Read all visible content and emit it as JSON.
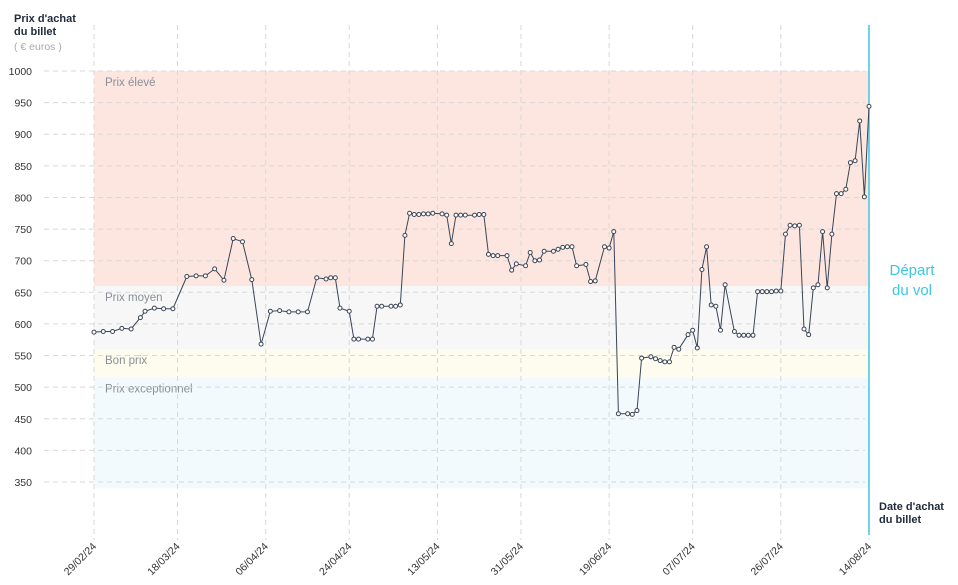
{
  "chart_data": {
    "type": "line",
    "y_label_lines": [
      "Prix d'achat",
      "du billet"
    ],
    "y_unit": "( € euros )",
    "x_label_lines": [
      "Date d'achat",
      "du billet"
    ],
    "annotation_lines": [
      "Départ",
      "du vol"
    ],
    "ylim": [
      300,
      1000
    ],
    "yticks": [
      350,
      400,
      450,
      500,
      550,
      600,
      650,
      700,
      750,
      800,
      850,
      900,
      950,
      1000
    ],
    "xlim": [
      "29/02/24",
      "14/08/24"
    ],
    "xticks": [
      "29/02/24",
      "18/03/24",
      "06/04/24",
      "24/04/24",
      "13/05/24",
      "31/05/24",
      "19/06/24",
      "07/07/24",
      "26/07/24",
      "14/08/24"
    ],
    "grid": true,
    "departure": "14/08/24",
    "zones": [
      {
        "name": "Prix élevé",
        "min": 660,
        "max": 1000,
        "color": "#fde6df"
      },
      {
        "name": "Prix moyen",
        "min": 560,
        "max": 660,
        "color": "#f7f7f8"
      },
      {
        "name": "Bon prix",
        "min": 515,
        "max": 560,
        "color": "#fdfcee"
      },
      {
        "name": "Prix exceptionnel",
        "min": 340,
        "max": 515,
        "color": "#f3fafd"
      }
    ],
    "x": [
      "29/02/24",
      "02/03/24",
      "04/03/24",
      "06/03/24",
      "08/03/24",
      "10/03/24",
      "11/03/24",
      "13/03/24",
      "15/03/24",
      "17/03/24",
      "20/03/24",
      "22/03/24",
      "24/03/24",
      "26/03/24",
      "28/03/24",
      "30/03/24",
      "01/04/24",
      "03/04/24",
      "05/04/24",
      "07/04/24",
      "09/04/24",
      "11/04/24",
      "13/04/24",
      "15/04/24",
      "17/04/24",
      "19/04/24",
      "20/04/24",
      "21/04/24",
      "22/04/24",
      "24/04/24",
      "25/04/24",
      "26/04/24",
      "28/04/24",
      "29/04/24",
      "30/04/24",
      "01/05/24",
      "03/05/24",
      "04/05/24",
      "05/05/24",
      "06/05/24",
      "07/05/24",
      "08/05/24",
      "09/05/24",
      "10/05/24",
      "11/05/24",
      "12/05/24",
      "14/05/24",
      "15/05/24",
      "16/05/24",
      "17/05/24",
      "18/05/24",
      "19/05/24",
      "21/05/24",
      "22/05/24",
      "23/05/24",
      "24/05/24",
      "25/05/24",
      "26/05/24",
      "28/05/24",
      "29/05/24",
      "30/05/24",
      "01/06/24",
      "02/06/24",
      "03/06/24",
      "04/06/24",
      "05/06/24",
      "07/06/24",
      "08/06/24",
      "09/06/24",
      "10/06/24",
      "11/06/24",
      "12/06/24",
      "14/06/24",
      "15/06/24",
      "16/06/24",
      "18/06/24",
      "19/06/24",
      "20/06/24",
      "21/06/24",
      "23/06/24",
      "24/06/24",
      "25/06/24",
      "26/06/24",
      "28/06/24",
      "29/06/24",
      "30/06/24",
      "01/07/24",
      "02/07/24",
      "03/07/24",
      "04/07/24",
      "06/07/24",
      "07/07/24",
      "08/07/24",
      "09/07/24",
      "10/07/24",
      "11/07/24",
      "12/07/24",
      "13/07/24",
      "14/07/24",
      "16/07/24",
      "17/07/24",
      "18/07/24",
      "19/07/24",
      "20/07/24",
      "21/07/24",
      "22/07/24",
      "23/07/24",
      "24/07/24",
      "25/07/24",
      "26/07/24",
      "27/07/24",
      "28/07/24",
      "29/07/24",
      "30/07/24",
      "31/07/24",
      "01/08/24",
      "02/08/24",
      "03/08/24",
      "04/08/24",
      "05/08/24",
      "06/08/24",
      "07/08/24",
      "08/08/24",
      "09/08/24",
      "10/08/24",
      "11/08/24",
      "12/08/24",
      "13/08/24",
      "14/08/24"
    ],
    "series": [
      {
        "name": "Prix",
        "color": "#3a4556",
        "values": [
          587,
          588,
          588,
          593,
          592,
          610,
          620,
          625,
          624,
          624,
          675,
          676,
          676,
          687,
          669,
          735,
          730,
          670,
          568,
          620,
          621,
          619,
          619,
          619,
          673,
          671,
          673,
          673,
          625,
          620,
          576,
          576,
          576,
          576,
          628,
          628,
          628,
          628,
          630,
          740,
          775,
          773,
          773,
          774,
          774,
          775,
          774,
          772,
          727,
          772,
          772,
          772,
          772,
          773,
          773,
          710,
          708,
          708,
          708,
          685,
          695,
          692,
          713,
          700,
          701,
          715,
          715,
          718,
          721,
          722,
          722,
          692,
          694,
          667,
          668,
          722,
          720,
          746,
          458,
          458,
          457,
          463,
          546,
          548,
          545,
          542,
          540,
          540,
          563,
          560,
          583,
          590,
          562,
          686,
          722,
          630,
          628,
          590,
          662,
          588,
          582,
          582,
          582,
          582,
          651,
          651,
          651,
          651,
          652,
          652,
          742,
          756,
          755,
          756,
          592,
          583,
          657,
          662,
          746,
          657,
          742,
          806,
          806,
          813,
          855,
          858,
          921,
          801,
          944
        ]
      }
    ]
  }
}
